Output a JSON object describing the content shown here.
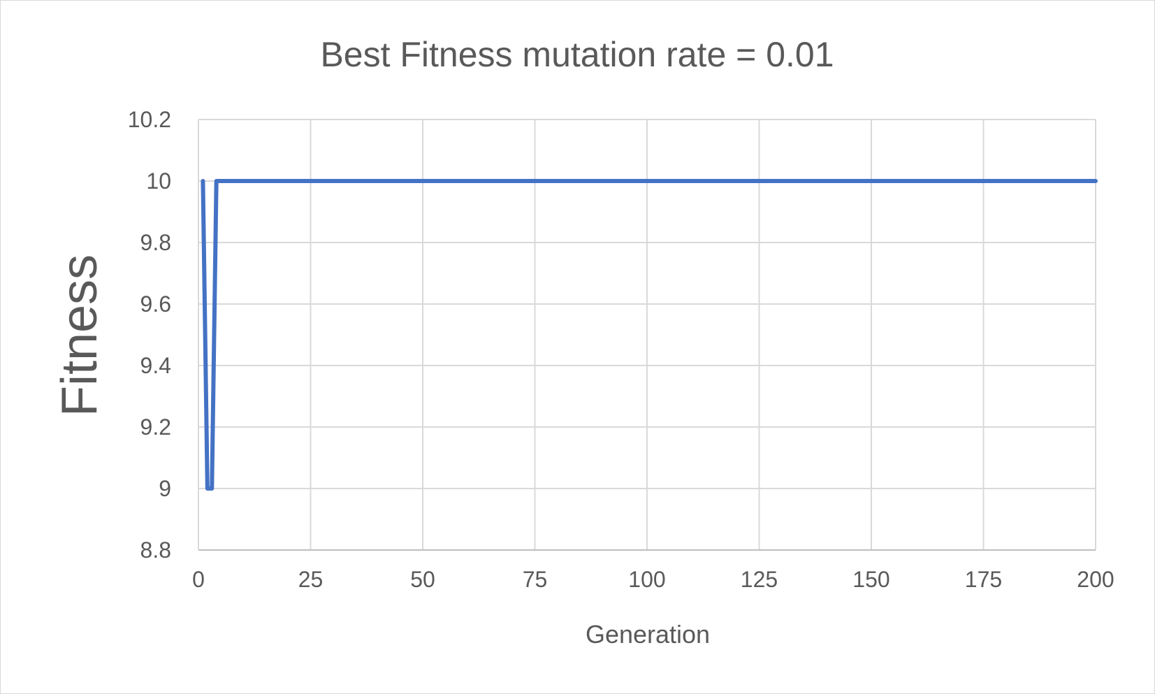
{
  "chart_data": {
    "type": "line",
    "title": "Best Fitness mutation rate = 0.01",
    "xlabel": "Generation",
    "ylabel": "Fitness",
    "xlim": [
      0,
      200
    ],
    "ylim": [
      8.8,
      10.2
    ],
    "x_ticks": [
      "0",
      "25",
      "50",
      "75",
      "100",
      "125",
      "150",
      "175",
      "200"
    ],
    "y_ticks": [
      "10.2",
      "10",
      "9.8",
      "9.6",
      "9.4",
      "9.2",
      "9",
      "8.8"
    ],
    "grid": true,
    "legend": "none",
    "series": [
      {
        "color": "#4472c4",
        "x": [
          1,
          2,
          3,
          4,
          5,
          25,
          50,
          75,
          100,
          125,
          150,
          175,
          200
        ],
        "y": [
          10,
          9,
          9,
          10,
          10,
          10,
          10,
          10,
          10,
          10,
          10,
          10,
          10
        ]
      }
    ]
  }
}
